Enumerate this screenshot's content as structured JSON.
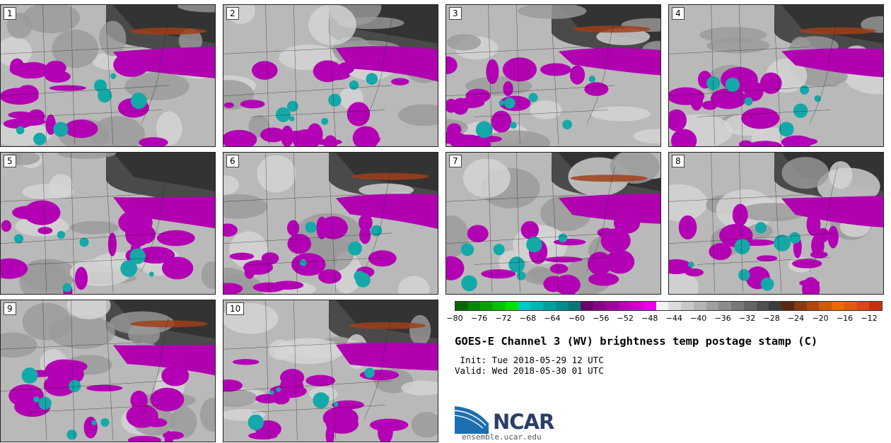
{
  "panels": [
    {
      "label": "1"
    },
    {
      "label": "2"
    },
    {
      "label": "3"
    },
    {
      "label": "4"
    },
    {
      "label": "5"
    },
    {
      "label": "6"
    },
    {
      "label": "7"
    },
    {
      "label": "8"
    },
    {
      "label": "9"
    },
    {
      "label": "10"
    }
  ],
  "colorbar": {
    "colors": [
      "#006a00",
      "#008800",
      "#00a400",
      "#00c200",
      "#00e000",
      "#00c8c8",
      "#00b4b4",
      "#00a0a0",
      "#008c8c",
      "#007878",
      "#6a0068",
      "#880088",
      "#a000a0",
      "#b800b8",
      "#d000d0",
      "#e600e6",
      "#f2f2f2",
      "#dcdcdc",
      "#c8c8c8",
      "#b4b4b4",
      "#a0a0a0",
      "#8c8c8c",
      "#787878",
      "#646464",
      "#505050",
      "#3c3c3c",
      "#5a2a10",
      "#8a3a14",
      "#b0480e",
      "#d05a08",
      "#e86a00",
      "#e05a10",
      "#d84818",
      "#c83010"
    ],
    "ticks": [
      "−80",
      "−76",
      "−72",
      "−68",
      "−64",
      "−60",
      "−56",
      "−52",
      "−48",
      "−44",
      "−40",
      "−36",
      "−32",
      "−28",
      "−24",
      "−20",
      "−16",
      "−12"
    ]
  },
  "title": "GOES-E Channel 3 (WV) brightness temp postage stamp (C)",
  "init": " Init: Tue 2018-05-29 12 UTC",
  "valid": "Valid: Wed 2018-05-30 01 UTC",
  "logo": {
    "text": "NCAR",
    "url": "ensemble.ucar.edu"
  }
}
